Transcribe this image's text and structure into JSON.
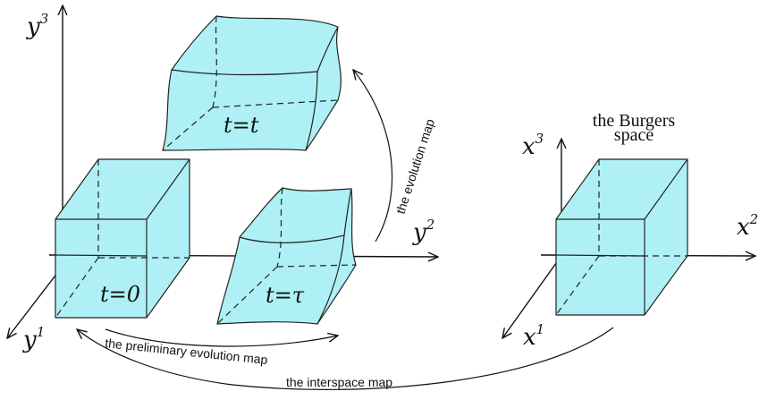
{
  "axes": {
    "y3": {
      "base": "y",
      "sup": "3"
    },
    "y2": {
      "base": "y",
      "sup": "2"
    },
    "y1": {
      "base": "y",
      "sup": "1"
    },
    "x3": {
      "base": "x",
      "sup": "3"
    },
    "x2": {
      "base": "x",
      "sup": "2"
    },
    "x1": {
      "base": "x",
      "sup": "1"
    }
  },
  "cube_labels": {
    "t0": "t=0",
    "tt": "t=t",
    "ttau": "t=τ"
  },
  "space_title": {
    "line1": "the Burgers",
    "line2": "space"
  },
  "maps": {
    "evolution": "the evolution map",
    "preliminary": "the preliminary evolution map",
    "interspace": "the interspace map"
  },
  "colors": {
    "cube_fill": "#aef0f5",
    "stroke": "#222222"
  }
}
